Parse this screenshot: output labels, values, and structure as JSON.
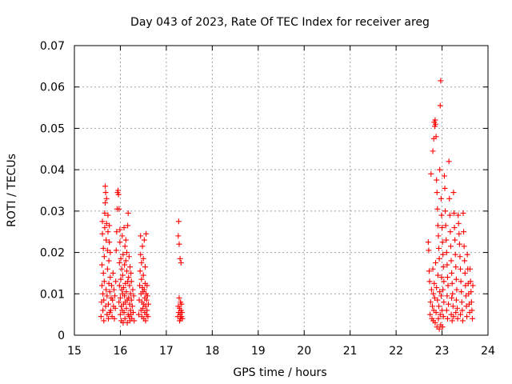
{
  "chart_data": {
    "type": "scatter",
    "title": "Day 043 of 2023, Rate Of TEC Index for receiver areg",
    "xlabel": "GPS time / hours",
    "ylabel": "ROTI / TECUs",
    "xlim": [
      15,
      24
    ],
    "ylim": [
      0,
      0.07
    ],
    "xticks": [
      "15",
      "16",
      "17",
      "18",
      "19",
      "20",
      "21",
      "22",
      "23",
      "24"
    ],
    "yticks": [
      "0",
      "0.01",
      "0.02",
      "0.03",
      "0.04",
      "0.05",
      "0.06",
      "0.07"
    ],
    "grid": true,
    "marker": "+",
    "color": "#ff0000",
    "series": [
      {
        "points": [
          [
            15.58,
            0.0045
          ],
          [
            15.59,
            0.008
          ],
          [
            15.6,
            0.012
          ],
          [
            15.6,
            0.017
          ],
          [
            15.61,
            0.0245
          ],
          [
            15.61,
            0.0275
          ],
          [
            15.62,
            0.006
          ],
          [
            15.62,
            0.01
          ],
          [
            15.63,
            0.015
          ],
          [
            15.63,
            0.021
          ],
          [
            15.64,
            0.0035
          ],
          [
            15.64,
            0.0085
          ],
          [
            15.65,
            0.013
          ],
          [
            15.65,
            0.019
          ],
          [
            15.66,
            0.026
          ],
          [
            15.66,
            0.0295
          ],
          [
            15.67,
            0.032
          ],
          [
            15.67,
            0.036
          ],
          [
            15.68,
            0.0345
          ],
          [
            15.68,
            0.007
          ],
          [
            15.69,
            0.011
          ],
          [
            15.69,
            0.023
          ],
          [
            15.7,
            0.027
          ],
          [
            15.7,
            0.033
          ],
          [
            15.71,
            0.005
          ],
          [
            15.71,
            0.0095
          ],
          [
            15.72,
            0.016
          ],
          [
            15.72,
            0.0205
          ],
          [
            15.73,
            0.025
          ],
          [
            15.73,
            0.029
          ],
          [
            15.74,
            0.004
          ],
          [
            15.74,
            0.0075
          ],
          [
            15.75,
            0.0125
          ],
          [
            15.75,
            0.018
          ],
          [
            15.76,
            0.0225
          ],
          [
            15.76,
            0.0265
          ],
          [
            15.77,
            0.0055
          ],
          [
            15.77,
            0.0105
          ],
          [
            15.78,
            0.014
          ],
          [
            15.78,
            0.02
          ],
          [
            15.79,
            0.006
          ],
          [
            15.8,
            0.009
          ],
          [
            15.81,
            0.012
          ],
          [
            15.82,
            0.0045
          ],
          [
            15.83,
            0.0085
          ],
          [
            15.84,
            0.015
          ],
          [
            15.85,
            0.007
          ],
          [
            15.86,
            0.011
          ],
          [
            15.87,
            0.004
          ],
          [
            15.88,
            0.0095
          ],
          [
            15.89,
            0.0065
          ],
          [
            15.9,
            0.013
          ],
          [
            15.91,
            0.0205
          ],
          [
            15.92,
            0.025
          ],
          [
            15.93,
            0.0305
          ],
          [
            15.94,
            0.0345
          ],
          [
            15.95,
            0.035
          ],
          [
            15.96,
            0.034
          ],
          [
            15.97,
            0.0305
          ],
          [
            15.97,
            0.008
          ],
          [
            15.98,
            0.012
          ],
          [
            15.98,
            0.0175
          ],
          [
            15.99,
            0.0225
          ],
          [
            15.99,
            0.0255
          ],
          [
            16.0,
            0.005
          ],
          [
            16.0,
            0.009
          ],
          [
            16.01,
            0.0135
          ],
          [
            16.01,
            0.0185
          ],
          [
            16.02,
            0.0035
          ],
          [
            16.02,
            0.007
          ],
          [
            16.03,
            0.011
          ],
          [
            16.03,
            0.016
          ],
          [
            16.04,
            0.024
          ],
          [
            16.04,
            0.006
          ],
          [
            16.05,
            0.01
          ],
          [
            16.05,
            0.0145
          ],
          [
            16.06,
            0.0195
          ],
          [
            16.06,
            0.003
          ],
          [
            16.07,
            0.0075
          ],
          [
            16.07,
            0.0115
          ],
          [
            16.08,
            0.026
          ],
          [
            16.08,
            0.0055
          ],
          [
            16.09,
            0.0095
          ],
          [
            16.09,
            0.017
          ],
          [
            16.1,
            0.0215
          ],
          [
            16.1,
            0.004
          ],
          [
            16.11,
            0.008
          ],
          [
            16.11,
            0.0125
          ],
          [
            16.12,
            0.018
          ],
          [
            16.12,
            0.023
          ],
          [
            16.13,
            0.0065
          ],
          [
            16.13,
            0.0105
          ],
          [
            16.14,
            0.0155
          ],
          [
            16.14,
            0.02
          ],
          [
            16.15,
            0.003
          ],
          [
            16.15,
            0.0085
          ],
          [
            16.16,
            0.013
          ],
          [
            16.16,
            0.0265
          ],
          [
            16.17,
            0.0295
          ],
          [
            16.17,
            0.005
          ],
          [
            16.18,
            0.009
          ],
          [
            16.18,
            0.014
          ],
          [
            16.19,
            0.019
          ],
          [
            16.19,
            0.0045
          ],
          [
            16.2,
            0.0075
          ],
          [
            16.2,
            0.012
          ],
          [
            16.21,
            0.0165
          ],
          [
            16.21,
            0.0035
          ],
          [
            16.22,
            0.006
          ],
          [
            16.22,
            0.01
          ],
          [
            16.23,
            0.015
          ],
          [
            16.23,
            0.005
          ],
          [
            16.24,
            0.0085
          ],
          [
            16.24,
            0.013
          ],
          [
            16.25,
            0.004
          ],
          [
            16.26,
            0.007
          ],
          [
            16.27,
            0.011
          ],
          [
            16.28,
            0.0055
          ],
          [
            16.29,
            0.0095
          ],
          [
            16.3,
            0.0035
          ],
          [
            16.4,
            0.005
          ],
          [
            16.41,
            0.0085
          ],
          [
            16.42,
            0.012
          ],
          [
            16.43,
            0.0155
          ],
          [
            16.44,
            0.0195
          ],
          [
            16.44,
            0.024
          ],
          [
            16.45,
            0.006
          ],
          [
            16.45,
            0.01
          ],
          [
            16.46,
            0.0135
          ],
          [
            16.46,
            0.0175
          ],
          [
            16.47,
            0.0045
          ],
          [
            16.47,
            0.008
          ],
          [
            16.48,
            0.0115
          ],
          [
            16.48,
            0.0215
          ],
          [
            16.49,
            0.0065
          ],
          [
            16.49,
            0.0105
          ],
          [
            16.5,
            0.0145
          ],
          [
            16.5,
            0.0185
          ],
          [
            16.51,
            0.004
          ],
          [
            16.51,
            0.0075
          ],
          [
            16.52,
            0.011
          ],
          [
            16.52,
            0.023
          ],
          [
            16.53,
            0.0055
          ],
          [
            16.53,
            0.009
          ],
          [
            16.54,
            0.0125
          ],
          [
            16.54,
            0.0165
          ],
          [
            16.55,
            0.0035
          ],
          [
            16.55,
            0.007
          ],
          [
            16.56,
            0.01
          ],
          [
            16.56,
            0.0245
          ],
          [
            16.57,
            0.005
          ],
          [
            16.57,
            0.0085
          ],
          [
            16.58,
            0.012
          ],
          [
            16.58,
            0.006
          ],
          [
            16.59,
            0.0095
          ],
          [
            16.6,
            0.0045
          ],
          [
            16.61,
            0.0075
          ],
          [
            17.25,
            0.0045
          ],
          [
            17.26,
            0.007
          ],
          [
            17.26,
            0.024
          ],
          [
            17.27,
            0.0275
          ],
          [
            17.27,
            0.0055
          ],
          [
            17.28,
            0.009
          ],
          [
            17.28,
            0.022
          ],
          [
            17.29,
            0.0035
          ],
          [
            17.29,
            0.0065
          ],
          [
            17.3,
            0.0185
          ],
          [
            17.3,
            0.005
          ],
          [
            17.31,
            0.008
          ],
          [
            17.31,
            0.004
          ],
          [
            17.32,
            0.006
          ],
          [
            17.32,
            0.0175
          ],
          [
            17.33,
            0.0045
          ],
          [
            17.33,
            0.0075
          ],
          [
            17.34,
            0.0055
          ],
          [
            17.35,
            0.004
          ],
          [
            22.7,
            0.0225
          ],
          [
            22.71,
            0.0205
          ],
          [
            22.72,
            0.0155
          ],
          [
            22.73,
            0.013
          ],
          [
            22.74,
            0.005
          ],
          [
            22.75,
            0.008
          ],
          [
            22.76,
            0.039
          ],
          [
            22.77,
            0.011
          ],
          [
            22.78,
            0.004
          ],
          [
            22.79,
            0.007
          ],
          [
            22.8,
            0.0445
          ],
          [
            22.8,
            0.016
          ],
          [
            22.81,
            0.01
          ],
          [
            22.81,
            0.0035
          ],
          [
            22.82,
            0.0475
          ],
          [
            22.82,
            0.006
          ],
          [
            22.83,
            0.0515
          ],
          [
            22.83,
            0.0125
          ],
          [
            22.84,
            0.0505
          ],
          [
            22.84,
            0.009
          ],
          [
            22.85,
            0.052
          ],
          [
            22.85,
            0.003
          ],
          [
            22.86,
            0.051
          ],
          [
            22.86,
            0.0175
          ],
          [
            22.87,
            0.048
          ],
          [
            22.87,
            0.0055
          ],
          [
            22.88,
            0.0375
          ],
          [
            22.88,
            0.0115
          ],
          [
            22.89,
            0.0345
          ],
          [
            22.89,
            0.002
          ],
          [
            22.9,
            0.0305
          ],
          [
            22.9,
            0.0085
          ],
          [
            22.91,
            0.0265
          ],
          [
            22.91,
            0.0145
          ],
          [
            22.92,
            0.024
          ],
          [
            22.92,
            0.004
          ],
          [
            22.93,
            0.021
          ],
          [
            22.93,
            0.007
          ],
          [
            22.94,
            0.0185
          ],
          [
            22.94,
            0.0015
          ],
          [
            22.95,
            0.04
          ],
          [
            22.95,
            0.0105
          ],
          [
            22.96,
            0.0555
          ],
          [
            22.96,
            0.005
          ],
          [
            22.97,
            0.0615
          ],
          [
            22.97,
            0.0025
          ],
          [
            22.98,
            0.033
          ],
          [
            22.98,
            0.0095
          ],
          [
            22.99,
            0.029
          ],
          [
            22.99,
            0.014
          ],
          [
            23.0,
            0.026
          ],
          [
            23.0,
            0.006
          ],
          [
            23.01,
            0.0225
          ],
          [
            23.01,
            0.002
          ],
          [
            23.02,
            0.0195
          ],
          [
            23.02,
            0.011
          ],
          [
            23.03,
            0.0165
          ],
          [
            23.03,
            0.0045
          ],
          [
            23.04,
            0.013
          ],
          [
            23.04,
            0.008
          ],
          [
            23.05,
            0.0385
          ],
          [
            23.06,
            0.0355
          ],
          [
            23.07,
            0.03
          ],
          [
            23.08,
            0.0265
          ],
          [
            23.09,
            0.023
          ],
          [
            23.1,
            0.02
          ],
          [
            23.1,
            0.006
          ],
          [
            23.11,
            0.017
          ],
          [
            23.11,
            0.0095
          ],
          [
            23.12,
            0.014
          ],
          [
            23.12,
            0.004
          ],
          [
            23.13,
            0.012
          ],
          [
            23.14,
            0.0075
          ],
          [
            23.15,
            0.042
          ],
          [
            23.16,
            0.033
          ],
          [
            23.17,
            0.029
          ],
          [
            23.18,
            0.025
          ],
          [
            23.19,
            0.0215
          ],
          [
            23.2,
            0.018
          ],
          [
            23.2,
            0.005
          ],
          [
            23.21,
            0.015
          ],
          [
            23.21,
            0.009
          ],
          [
            23.22,
            0.0125
          ],
          [
            23.22,
            0.0035
          ],
          [
            23.23,
            0.01
          ],
          [
            23.24,
            0.007
          ],
          [
            23.25,
            0.0345
          ],
          [
            23.25,
            0.0045
          ],
          [
            23.26,
            0.0295
          ],
          [
            23.27,
            0.026
          ],
          [
            23.28,
            0.023
          ],
          [
            23.29,
            0.0195
          ],
          [
            23.3,
            0.0165
          ],
          [
            23.3,
            0.0055
          ],
          [
            23.31,
            0.0135
          ],
          [
            23.31,
            0.0085
          ],
          [
            23.32,
            0.011
          ],
          [
            23.33,
            0.0065
          ],
          [
            23.34,
            0.004
          ],
          [
            23.35,
            0.029
          ],
          [
            23.36,
            0.027
          ],
          [
            23.37,
            0.0245
          ],
          [
            23.38,
            0.022
          ],
          [
            23.39,
            0.019
          ],
          [
            23.4,
            0.016
          ],
          [
            23.4,
            0.005
          ],
          [
            23.41,
            0.013
          ],
          [
            23.42,
            0.0105
          ],
          [
            23.43,
            0.008
          ],
          [
            23.44,
            0.006
          ],
          [
            23.45,
            0.0035
          ],
          [
            23.46,
            0.0295
          ],
          [
            23.47,
            0.025
          ],
          [
            23.48,
            0.0215
          ],
          [
            23.49,
            0.018
          ],
          [
            23.5,
            0.015
          ],
          [
            23.51,
            0.012
          ],
          [
            23.52,
            0.0095
          ],
          [
            23.53,
            0.007
          ],
          [
            23.54,
            0.0045
          ],
          [
            23.55,
            0.0195
          ],
          [
            23.56,
            0.016
          ],
          [
            23.57,
            0.0125
          ],
          [
            23.58,
            0.01
          ],
          [
            23.59,
            0.0075
          ],
          [
            23.6,
            0.0055
          ],
          [
            23.61,
            0.016
          ],
          [
            23.62,
            0.013
          ],
          [
            23.63,
            0.0105
          ],
          [
            23.64,
            0.008
          ],
          [
            23.65,
            0.006
          ],
          [
            23.66,
            0.004
          ],
          [
            23.67,
            0.012
          ]
        ]
      }
    ]
  }
}
